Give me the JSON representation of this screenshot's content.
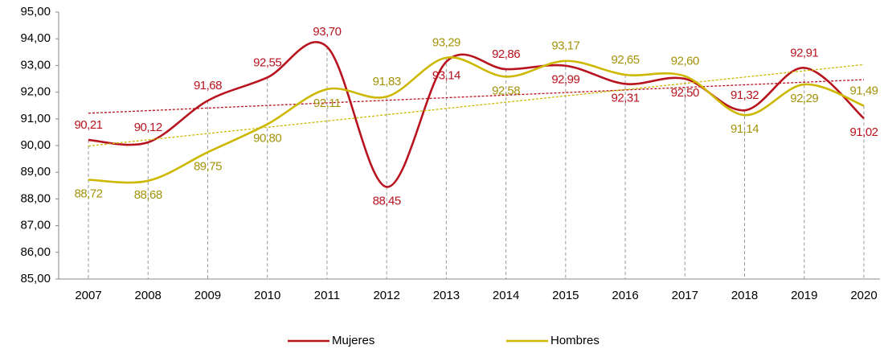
{
  "chart_data": {
    "type": "line",
    "categories": [
      "2007",
      "2008",
      "2009",
      "2010",
      "2011",
      "2012",
      "2013",
      "2014",
      "2015",
      "2016",
      "2017",
      "2018",
      "2019",
      "2020"
    ],
    "series": [
      {
        "name": "Mujeres",
        "color": "#b8141f",
        "label_color": "#b8141f",
        "values": [
          90.21,
          90.12,
          91.68,
          92.55,
          93.7,
          88.45,
          93.14,
          92.86,
          92.99,
          92.31,
          92.5,
          91.32,
          92.91,
          91.02
        ],
        "value_labels": [
          "90,21",
          "90,12",
          "91,68",
          "92,55",
          "93,70",
          "88,45",
          "93,14",
          "92,86",
          "92,99",
          "92,31",
          "92,50",
          "91,32",
          "92,91",
          "91,02"
        ]
      },
      {
        "name": "Hombres",
        "color": "#cdb800",
        "label_color": "#a3930a",
        "values": [
          88.72,
          88.68,
          89.75,
          90.8,
          92.11,
          91.83,
          93.29,
          92.58,
          93.17,
          92.65,
          92.6,
          91.14,
          92.29,
          91.49
        ],
        "value_labels": [
          "88,72",
          "88,68",
          "89,75",
          "90,80",
          "92,11",
          "91,83",
          "93,29",
          "92,58",
          "93,17",
          "92,65",
          "92,60",
          "91,14",
          "92,29",
          "91,49"
        ]
      }
    ],
    "ylim": [
      85,
      95
    ],
    "yticks": [
      {
        "value": 85,
        "label": "85,00"
      },
      {
        "value": 86,
        "label": "86,00"
      },
      {
        "value": 87,
        "label": "87,00"
      },
      {
        "value": 88,
        "label": "88,00"
      },
      {
        "value": 89,
        "label": "89,00"
      },
      {
        "value": 90,
        "label": "90,00"
      },
      {
        "value": 91,
        "label": "91,00"
      },
      {
        "value": 92,
        "label": "92,00"
      },
      {
        "value": 93,
        "label": "93,00"
      },
      {
        "value": 94,
        "label": "94,00"
      },
      {
        "value": 95,
        "label": "95,00"
      }
    ],
    "smooth": true,
    "trendline": true,
    "drop_lines": true,
    "legend": "bottom"
  }
}
